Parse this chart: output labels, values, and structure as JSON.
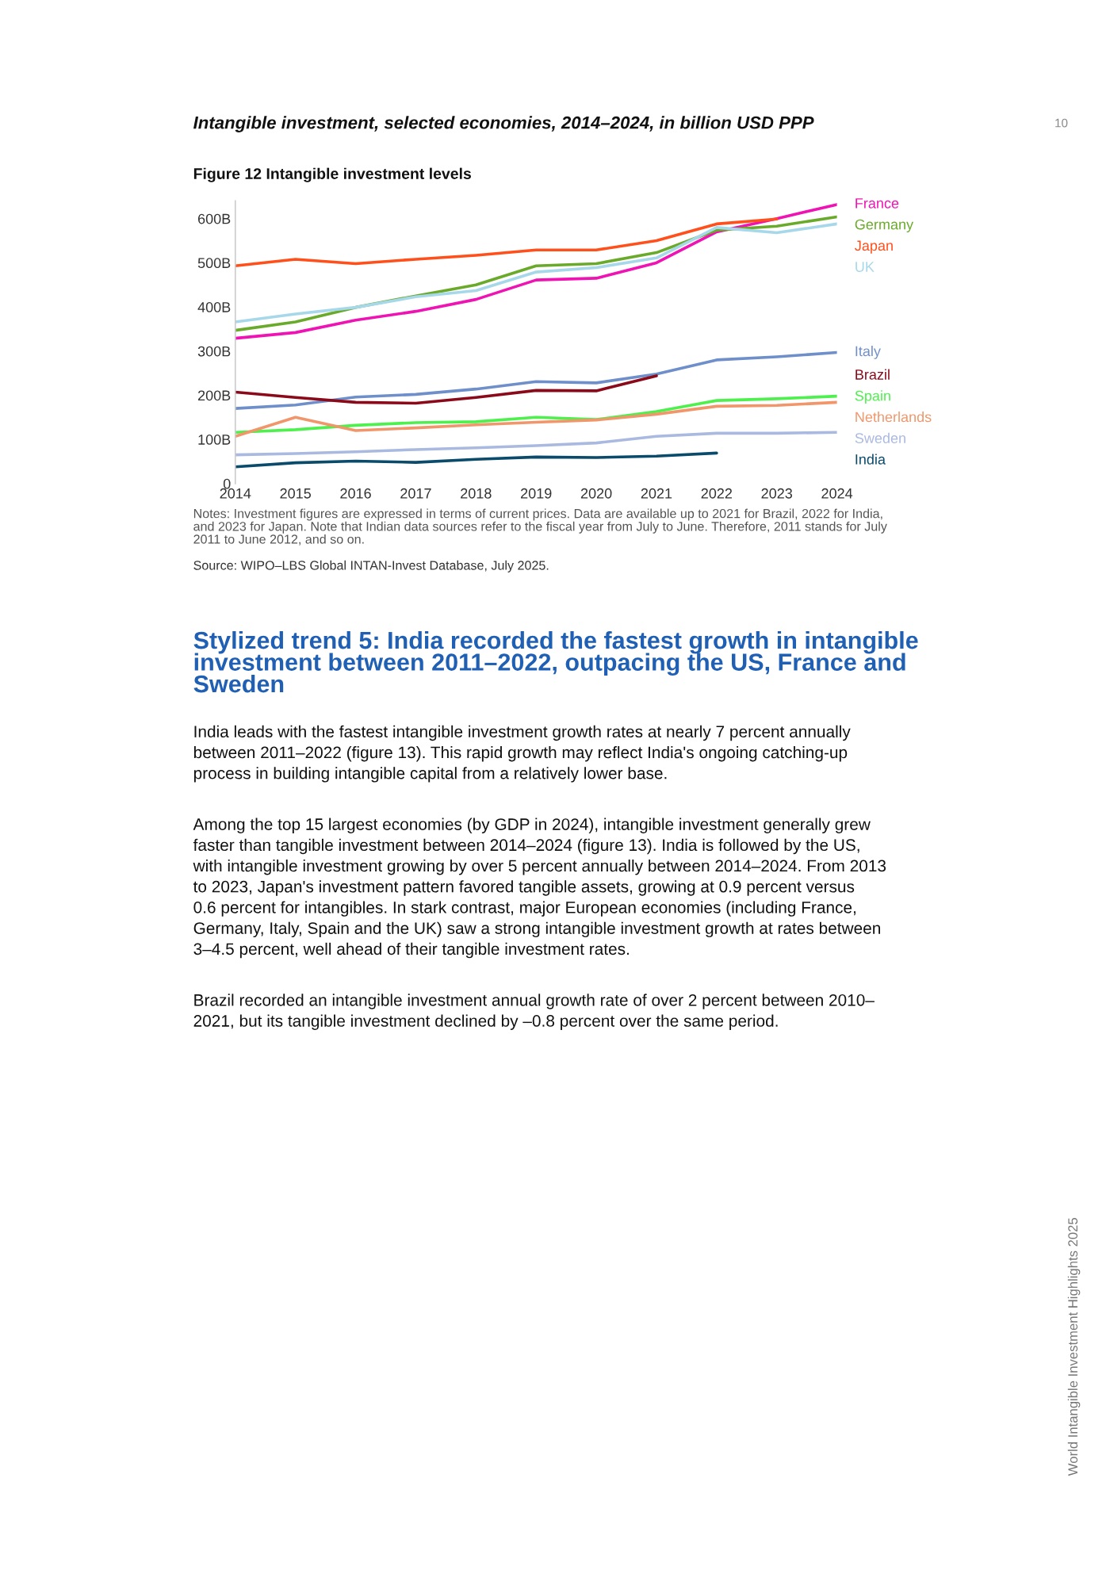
{
  "chart_data": {
    "type": "line",
    "title": "Intangible investment, selected economies, 2014–2024, in billion USD PPP",
    "subtitle": "Figure 12 Intangible investment levels",
    "x": [
      2014,
      2015,
      2016,
      2017,
      2018,
      2019,
      2020,
      2021,
      2022,
      2023,
      2024
    ],
    "xlim": [
      2014,
      2024
    ],
    "xticks": [
      2014,
      2015,
      2016,
      2017,
      2018,
      2019,
      2020,
      2021,
      2022,
      2023,
      2024
    ],
    "ylim": [
      0,
      640
    ],
    "yticks": [
      0,
      {
        "value": 100,
        "label": "100B"
      },
      {
        "value": 200,
        "label": "200B"
      },
      {
        "value": 300,
        "label": "300B"
      },
      {
        "value": 400,
        "label": "400B"
      },
      {
        "value": 500,
        "label": "500B"
      },
      {
        "value": 600,
        "label": "600B"
      }
    ],
    "grid": false,
    "legend": false,
    "marker": "none",
    "line_style": "solid",
    "series": [
      {
        "name": "France",
        "color": "#f013b4",
        "values": [
          329,
          342,
          370,
          390,
          417,
          461,
          465,
          500,
          570,
          600,
          632
        ]
      },
      {
        "name": "Germany",
        "color": "#6aaa2a",
        "values": [
          347,
          366,
          399,
          425,
          450,
          493,
          498,
          523,
          574,
          583,
          604
        ]
      },
      {
        "name": "Japan",
        "color": "#ff4f1a",
        "values": [
          493,
          508,
          498,
          508,
          517,
          529,
          529,
          550,
          588,
          599,
          null
        ]
      },
      {
        "name": "UK",
        "color": "#a6d8ea",
        "values": [
          366,
          384,
          399,
          423,
          437,
          479,
          489,
          511,
          580,
          568,
          588
        ]
      },
      {
        "name": "Italy",
        "color": "#6f8fca",
        "values": [
          170,
          178,
          196,
          202,
          214,
          231,
          228,
          248,
          280,
          287,
          297
        ]
      },
      {
        "name": "Brazil",
        "color": "#8b0a1a",
        "values": [
          207,
          195,
          184,
          182,
          195,
          211,
          210,
          244,
          null,
          null,
          null
        ]
      },
      {
        "name": "Spain",
        "color": "#4ef04e",
        "values": [
          116,
          122,
          132,
          138,
          140,
          150,
          145,
          163,
          188,
          192,
          198
        ]
      },
      {
        "name": "Netherlands",
        "color": "#f0966a",
        "values": [
          107,
          150,
          120,
          126,
          133,
          139,
          144,
          157,
          175,
          177,
          184
        ]
      },
      {
        "name": "Sweden",
        "color": "#a9b9e0",
        "values": [
          65,
          68,
          72,
          77,
          81,
          86,
          92,
          107,
          114,
          114,
          116
        ]
      },
      {
        "name": "India",
        "color": "#0a4a6a",
        "values": [
          38,
          47,
          51,
          48,
          55,
          60,
          59,
          62,
          69,
          null,
          null
        ]
      }
    ],
    "annotations": [
      "Notes: Investment figures are expressed in terms of current prices. Data are available up to 2021 for Brazil, 2022 for India,\nand 2023 for Japan. Note that Indian data sources refer to the fiscal year from July to June. Therefore, 2011 stands for July\n2011 to June 2012, and so on.",
      "Source: WIPO–LBS Global INTAN-Invest Database, July 2025.",
      "Stylized trend 5: India recorded the fastest growth in intangible\ninvestment between 2011–2022, outpacing the US, France and\nSweden",
      "India leads with the fastest intangible investment growth rates at nearly 7 percent annually\nbetween 2011–2022 (figure 13). This rapid growth may reflect India's ongoing catching-up\nprocess in building intangible capital from a relatively lower base.",
      "Among the top 15 largest economies (by GDP in 2024), intangible investment generally grew\nfaster than tangible investment between 2014–2024 (figure 13). India is followed by the US,\nwith intangible investment growing by over 5 percent annually between 2014–2024. From 2013\nto 2023, Japan's investment pattern favored tangible assets, growing at 0.9 percent versus\n0.6 percent for intangibles. In stark contrast, major European economies (including France,\nGermany, Italy, Spain and the UK) saw a strong intangible investment growth at rates between\n3–4.5 percent, well ahead of their tangible investment rates.",
      "Brazil recorded an intangible investment annual growth rate of over 2 percent between 2010–\n2021, but its tangible investment declined by –0.8 percent over the same period.",
      "10",
      "World Intangible Investment Highlights 2025"
    ]
  }
}
